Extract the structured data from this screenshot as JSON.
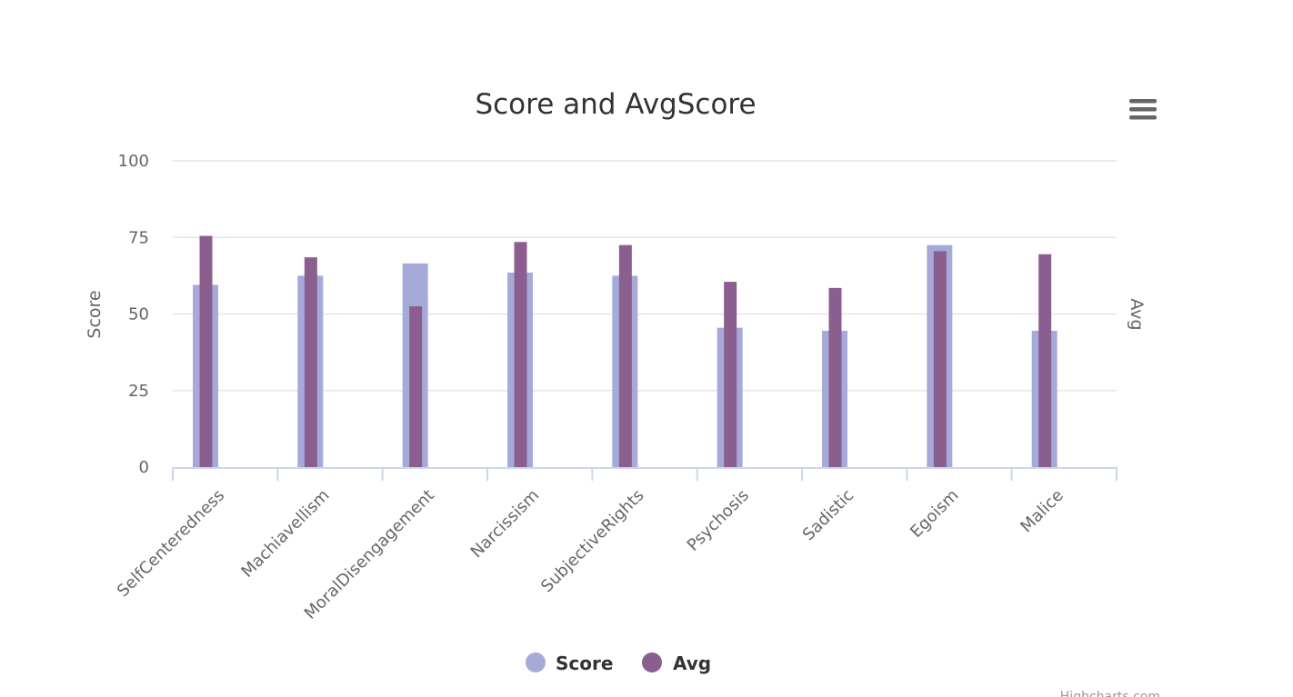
{
  "menu": {
    "icon": "hamburger-menu-icon"
  },
  "credits": {
    "text": "Highcharts.com"
  },
  "chart_data": {
    "type": "bar",
    "title": "Score and AvgScore",
    "categories": [
      "SelfCenteredness",
      "Machiavellism",
      "MoralDisengagement",
      "Narcissism",
      "SubjectiveRights",
      "Psychosis",
      "Sadistic",
      "Egoism",
      "Malice"
    ],
    "series": [
      {
        "name": "Score",
        "color": "#a5aad9",
        "values": [
          59.5,
          62.5,
          66.5,
          63.5,
          62.5,
          45.5,
          44.5,
          72.5,
          44.5
        ]
      },
      {
        "name": "Avg",
        "color": "#8a5e8e",
        "values": [
          75.5,
          68.5,
          52.5,
          73.5,
          72.5,
          60.5,
          58.5,
          70.5,
          69.5
        ]
      }
    ],
    "ylabel": "Score",
    "y2label": "Avg",
    "ylim": [
      0,
      100
    ],
    "yticks": [
      0,
      25,
      50,
      75,
      100
    ],
    "grid": true,
    "legend_position": "bottom-center"
  }
}
